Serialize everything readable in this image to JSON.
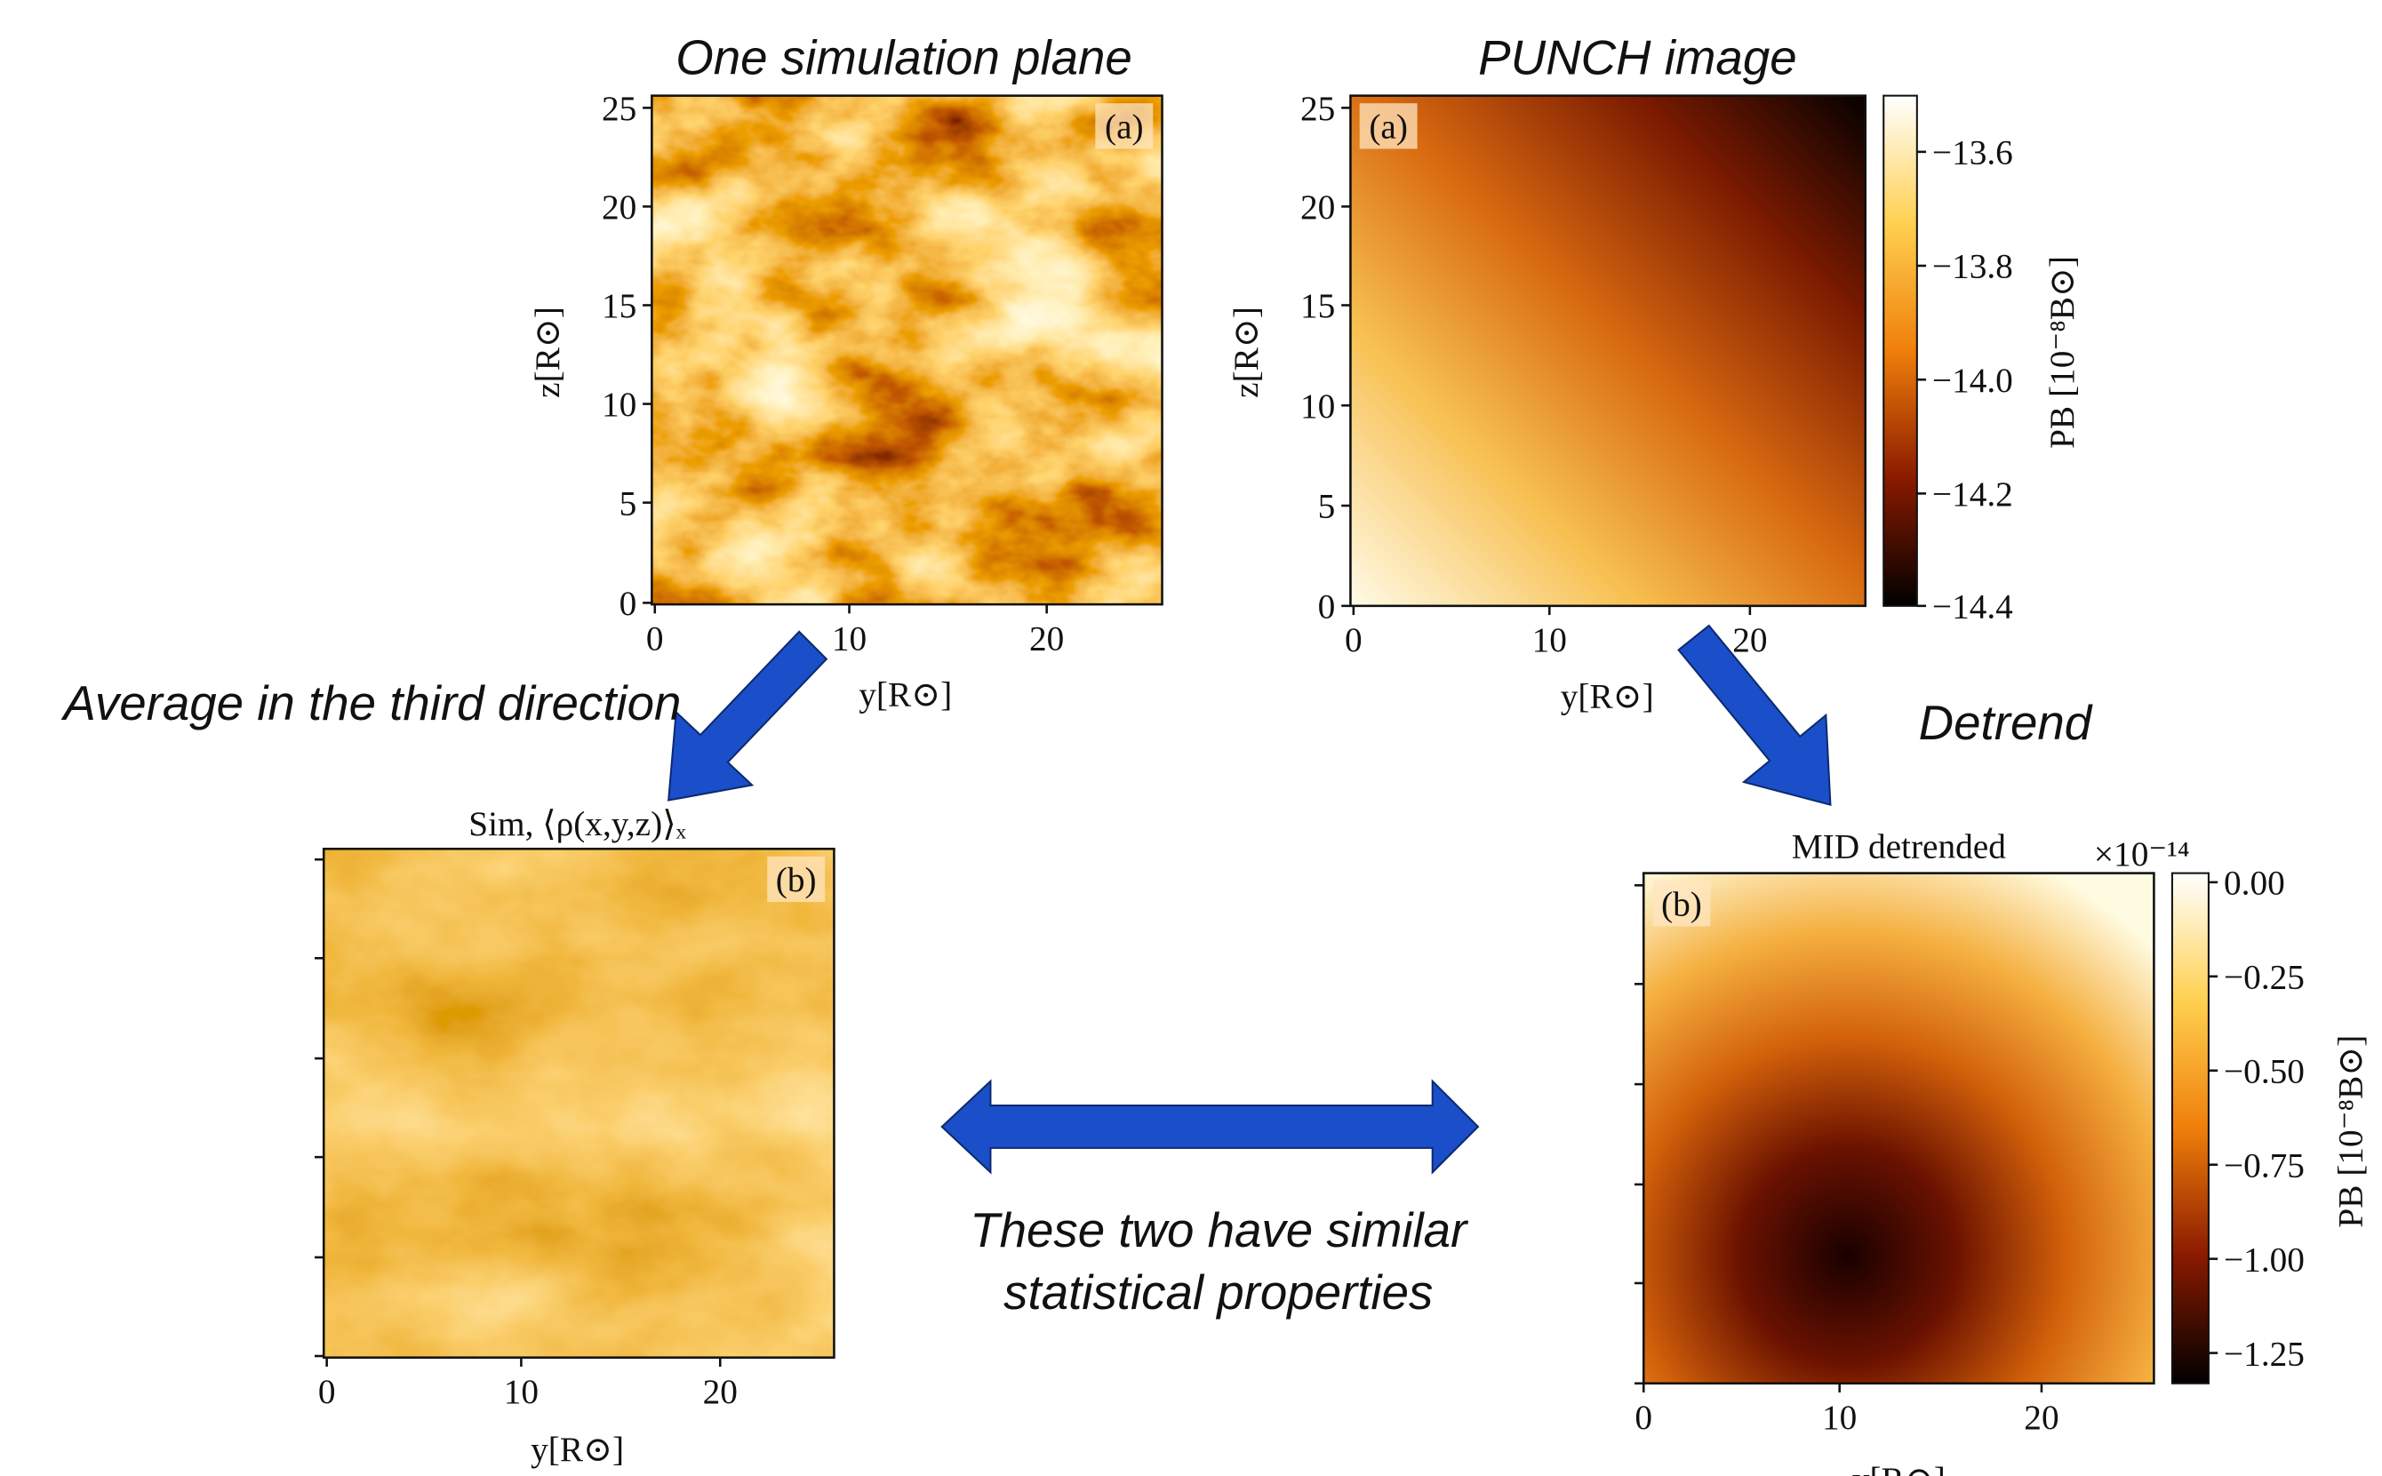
{
  "headings": {
    "left": "One simulation plane",
    "right": "PUNCH image"
  },
  "panels": [
    {
      "label": "(a)",
      "xticks": [
        "0",
        "10",
        "20"
      ],
      "yticks": [
        "25",
        "20",
        "15",
        "10",
        "5",
        "0"
      ],
      "xlabel": "y[R⊙]",
      "ylabel": "z[R⊙]"
    },
    {
      "label": "(a)",
      "xticks": [
        "0",
        "10",
        "20"
      ],
      "yticks": [
        "25",
        "20",
        "15",
        "10",
        "5",
        "0"
      ],
      "xlabel": "y[R⊙]",
      "ylabel": "z[R⊙]",
      "colorbar": {
        "ticks": [
          "−13.6",
          "−13.8",
          "−14.0",
          "−14.2",
          "−14.4"
        ],
        "label": "PB [10⁻⁸B⊙]"
      }
    },
    {
      "title": "Sim, ⟨ρ(x,y,z)⟩ₓ",
      "label": "(b)",
      "xticks": [
        "0",
        "10",
        "20"
      ],
      "xlabel": "y[R⊙]"
    },
    {
      "title": "MID detrended",
      "label": "(b)",
      "xticks": [
        "0",
        "10",
        "20"
      ],
      "xlabel": "y[R⊙]",
      "colorbar": {
        "multiplier": "×10⁻¹⁴",
        "ticks": [
          "0.00",
          "−0.25",
          "−0.50",
          "−0.75",
          "−1.00",
          "−1.25"
        ],
        "label": "PB [10⁻⁸B⊙]"
      }
    }
  ],
  "annotations": {
    "average": "Average in the third direction",
    "detrend": "Detrend",
    "similar": [
      "These two have similar",
      "statistical properties"
    ]
  }
}
